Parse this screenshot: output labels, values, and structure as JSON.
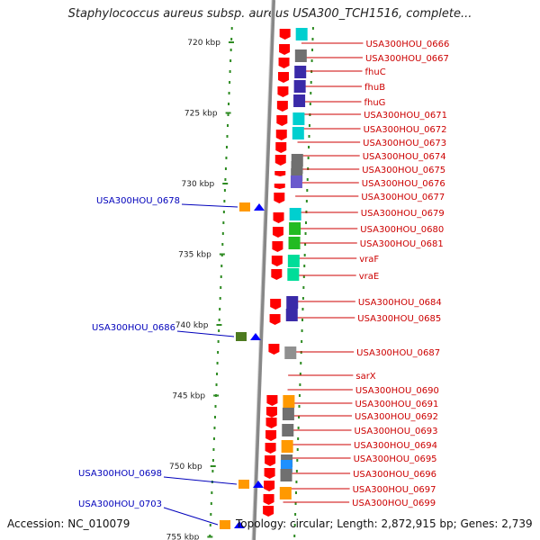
{
  "title": "Staphylococcus aureus subsp. aureus USA300_TCH1516, complete...",
  "accession": "Accession: NC_010079",
  "topology": "Topology: circular; Length: 2,872,915 bp; Genes: 2,739",
  "scale_marks": [
    {
      "label": "720 kbp",
      "kb": 720
    },
    {
      "label": "725 kbp",
      "kb": 725
    },
    {
      "label": "730 kbp",
      "kb": 730
    },
    {
      "label": "735 kbp",
      "kb": 735
    },
    {
      "label": "740 kbp",
      "kb": 740
    },
    {
      "label": "745 kbp",
      "kb": 745
    },
    {
      "label": "750 kbp",
      "kb": 750
    },
    {
      "label": "755 kbp",
      "kb": 755
    }
  ],
  "right_labels": [
    "USA300HOU_0666",
    "USA300HOU_0667",
    "fhuC",
    "fhuB",
    "fhuG",
    "USA300HOU_0671",
    "USA300HOU_0672",
    "USA300HOU_0673",
    "USA300HOU_0674",
    "USA300HOU_0675",
    "USA300HOU_0676",
    "USA300HOU_0677",
    "USA300HOU_0679",
    "USA300HOU_0680",
    "USA300HOU_0681",
    "vraF",
    "vraE",
    "USA300HOU_0684",
    "USA300HOU_0685",
    "USA300HOU_0687",
    "sarX",
    "USA300HOU_0690",
    "USA300HOU_0691",
    "USA300HOU_0692",
    "USA300HOU_0693",
    "USA300HOU_0694",
    "USA300HOU_0695",
    "USA300HOU_0696",
    "USA300HOU_0697",
    "USA300HOU_0699"
  ],
  "left_labels": [
    "USA300HOU_0678",
    "USA300HOU_0686",
    "USA300HOU_0698",
    "USA300HOU_0703"
  ],
  "colors": {
    "right_label": "#cc0000",
    "left_label": "#0000bb",
    "gene_arrow": "#ff0000",
    "reverse_gene": "#0000ff",
    "dots": "#2e8b22"
  }
}
